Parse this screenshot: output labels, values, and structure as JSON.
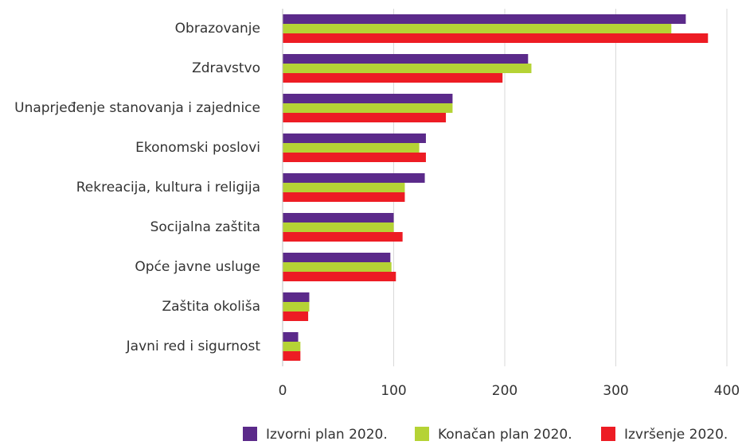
{
  "chart_data": {
    "type": "barh",
    "categories": [
      "Obrazovanje",
      "Zdravstvo",
      "Unaprjeđenje stanovanja i zajednice",
      "Ekonomski poslovi",
      "Rekreacija, kultura i religija",
      "Socijalna zaštita",
      "Opće javne usluge",
      "Zaštita okoliša",
      "Javni red i sigurnost"
    ],
    "series": [
      {
        "name": "Izvorni plan 2020.",
        "color": "#5b2a8a",
        "values": [
          363,
          221,
          153,
          129,
          128,
          100,
          97,
          24,
          14
        ]
      },
      {
        "name": "Konačan plan 2020.",
        "color": "#b5d335",
        "values": [
          350,
          224,
          153,
          123,
          110,
          100,
          98,
          24,
          16
        ]
      },
      {
        "name": "Izvršenje 2020.",
        "color": "#ed1c24",
        "values": [
          383,
          198,
          147,
          129,
          110,
          108,
          102,
          23,
          16
        ]
      }
    ],
    "xlim": [
      0,
      400
    ],
    "xticks": [
      0,
      100,
      200,
      300,
      400
    ],
    "grid": true,
    "legend": "bottom"
  }
}
